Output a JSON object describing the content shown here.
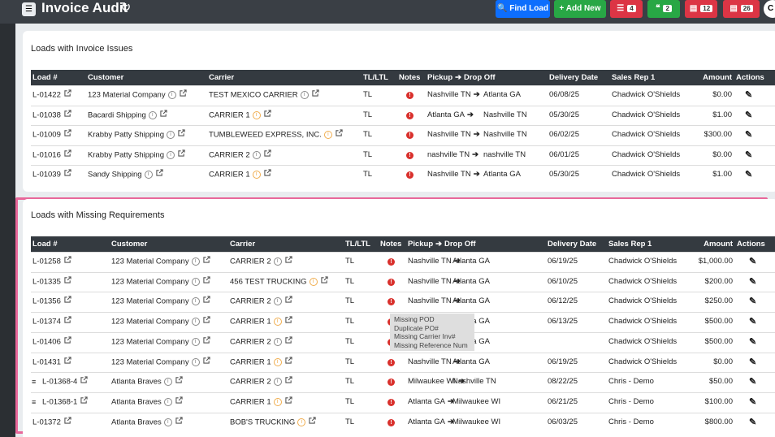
{
  "header": {
    "title": "Invoice Audit",
    "find_button": "Find Load",
    "add_button": "Add New",
    "badges": [
      "4",
      "2",
      "12",
      "26"
    ],
    "avatar": "C"
  },
  "sections": [
    {
      "title": "Loads with Invoice Issues",
      "columns": [
        "Load #",
        "Customer",
        "Carrier",
        "TL/LTL",
        "Notes",
        "Pickup",
        "Drop Off",
        "Delivery Date",
        "Sales Rep 1",
        "Amount",
        "Actions"
      ],
      "rows": [
        {
          "load": "L-01422",
          "customer": "123 Material Company",
          "carrier": "TEST MEXICO CARRIER",
          "carrier_info_color": "#888888",
          "tl": "TL",
          "pickup": "Nashville TN",
          "dropoff": "Atlanta GA",
          "date": "06/08/25",
          "rep": "Chadwick O'Shields",
          "amount": "$0.00"
        },
        {
          "load": "L-01038",
          "customer": "Bacardi Shipping",
          "carrier": "CARRIER 1",
          "carrier_info_color": "#f0ad4e",
          "tl": "TL",
          "pickup": "Atlanta GA",
          "dropoff": "Nashville TN",
          "date": "05/30/25",
          "rep": "Chadwick O'Shields",
          "amount": "$1.00"
        },
        {
          "load": "L-01009",
          "customer": "Krabby Patty Shipping",
          "carrier": "TUMBLEWEED EXPRESS, INC.",
          "carrier_info_color": "#f0ad4e",
          "tl": "TL",
          "pickup": "Nashville TN",
          "dropoff": "Nashville TN",
          "date": "06/02/25",
          "rep": "Chadwick O'Shields",
          "amount": "$300.00"
        },
        {
          "load": "L-01016",
          "customer": "Krabby Patty Shipping",
          "carrier": "CARRIER 2",
          "carrier_info_color": "#888888",
          "tl": "TL",
          "pickup": "nashville TN",
          "dropoff": "nashville TN",
          "date": "06/01/25",
          "rep": "Chadwick O'Shields",
          "amount": "$0.00"
        },
        {
          "load": "L-01039",
          "customer": "Sandy Shipping",
          "carrier": "CARRIER 1",
          "carrier_info_color": "#f0ad4e",
          "tl": "TL",
          "pickup": "Nashville TN",
          "dropoff": "Atlanta GA",
          "date": "05/30/25",
          "rep": "Chadwick O'Shields",
          "amount": "$1.00"
        }
      ]
    },
    {
      "title": "Loads with Missing Requirements",
      "columns": [
        "Load #",
        "Customer",
        "Carrier",
        "TL/LTL",
        "Notes",
        "Pickup",
        "Drop Off",
        "Delivery Date",
        "Sales Rep 1",
        "Amount",
        "Actions"
      ],
      "rows": [
        {
          "load": "L-01258",
          "customer": "123 Material Company",
          "carrier": "CARRIER 2",
          "carrier_info_color": "#888888",
          "tl": "TL",
          "pickup": "Nashville TN",
          "dropoff": "Atlanta GA",
          "date": "06/19/25",
          "rep": "Chadwick O'Shields",
          "amount": "$1,000.00"
        },
        {
          "load": "L-01335",
          "customer": "123 Material Company",
          "carrier": "456 TEST TRUCKING",
          "carrier_info_color": "#f0ad4e",
          "tl": "TL",
          "pickup": "Nashville TN",
          "dropoff": "Atlanta GA",
          "date": "06/10/25",
          "rep": "Chadwick O'Shields",
          "amount": "$200.00"
        },
        {
          "load": "L-01356",
          "customer": "123 Material Company",
          "carrier": "CARRIER 2",
          "carrier_info_color": "#888888",
          "tl": "TL",
          "pickup": "Nashville TN",
          "dropoff": "Atlanta GA",
          "date": "06/12/25",
          "rep": "Chadwick O'Shields",
          "amount": "$250.00"
        },
        {
          "load": "L-01374",
          "customer": "123 Material Company",
          "carrier": "CARRIER 1",
          "carrier_info_color": "#f0ad4e",
          "tl": "TL",
          "pickup": null,
          "dropoff": "Atlanta GA",
          "date": "06/13/25",
          "rep": "Chadwick O'Shields",
          "amount": "$500.00"
        },
        {
          "load": "L-01406",
          "customer": "123 Material Company",
          "carrier": "CARRIER 2",
          "carrier_info_color": "#888888",
          "tl": "TL",
          "pickup": null,
          "dropoff": "Atlanta GA",
          "date": null,
          "rep": "Chadwick O'Shields",
          "amount": "$500.00"
        },
        {
          "load": "L-01431",
          "customer": "123 Material Company",
          "carrier": "CARRIER 1",
          "carrier_info_color": "#f0ad4e",
          "tl": "TL",
          "pickup": "Nashville TN",
          "dropoff": "Atlanta GA",
          "date": "06/19/25",
          "rep": "Chadwick O'Shields",
          "amount": "$0.00"
        },
        {
          "load": "L-01368-4",
          "stack": true,
          "customer": "Atlanta Braves",
          "carrier": "CARRIER 2",
          "carrier_info_color": "#888888",
          "tl": "TL",
          "pickup": "Milwaukee WI",
          "dropoff": "Nashville TN",
          "date": "08/22/25",
          "rep": "Chris - Demo",
          "amount": "$50.00"
        },
        {
          "load": "L-01368-1",
          "stack": true,
          "customer": "Atlanta Braves",
          "carrier": "CARRIER 1",
          "carrier_info_color": "#f0ad4e",
          "tl": "TL",
          "pickup": "Atlanta GA",
          "dropoff": "Milwaukee WI",
          "date": "06/21/25",
          "rep": "Chris - Demo",
          "amount": "$100.00"
        },
        {
          "load": "L-01372",
          "customer": "Atlanta Braves",
          "carrier": "BOB'S TRUCKING",
          "carrier_info_color": "#f0ad4e",
          "tl": "TL",
          "pickup": "Atlanta GA",
          "dropoff": "Milwaukee WI",
          "date": "06/03/25",
          "rep": "Chris - Demo",
          "amount": "$800.00"
        }
      ],
      "tooltip": [
        "Missing POD",
        "Duplicate PO#",
        "Missing Carrier Inv#",
        "Missing Reference Num"
      ]
    }
  ]
}
